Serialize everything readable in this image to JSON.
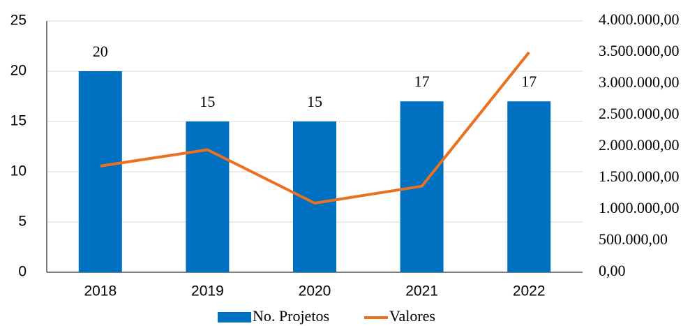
{
  "chart_data": {
    "type": "bar",
    "categories": [
      "2018",
      "2019",
      "2020",
      "2021",
      "2022"
    ],
    "series": [
      {
        "name": "No. Projetos",
        "type": "bar",
        "color": "#0070c0",
        "values": [
          20,
          15,
          15,
          17,
          17
        ]
      },
      {
        "name": "Valores",
        "type": "line",
        "axis": "y2",
        "color": "#e97120",
        "values": [
          1690000,
          1950000,
          1100000,
          1370000,
          3500000
        ]
      }
    ],
    "ylim": [
      0,
      25
    ],
    "yticks": [
      0,
      5,
      10,
      15,
      20,
      25
    ],
    "y2lim": [
      0,
      4000000
    ],
    "y2ticks": [
      {
        "value": 0,
        "label": "0,00"
      },
      {
        "value": 500000,
        "label": "500.000,00"
      },
      {
        "value": 1000000,
        "label": "1.000.000,00"
      },
      {
        "value": 1500000,
        "label": "1.500.000,00"
      },
      {
        "value": 2000000,
        "label": "2.000.000,00"
      },
      {
        "value": 2500000,
        "label": "2.500.000,00"
      },
      {
        "value": 3000000,
        "label": "3.000.000,00"
      },
      {
        "value": 3500000,
        "label": "3.500.000,00"
      },
      {
        "value": 4000000,
        "label": "4.000.000,00"
      }
    ],
    "grid": true,
    "legend": "bottom"
  }
}
